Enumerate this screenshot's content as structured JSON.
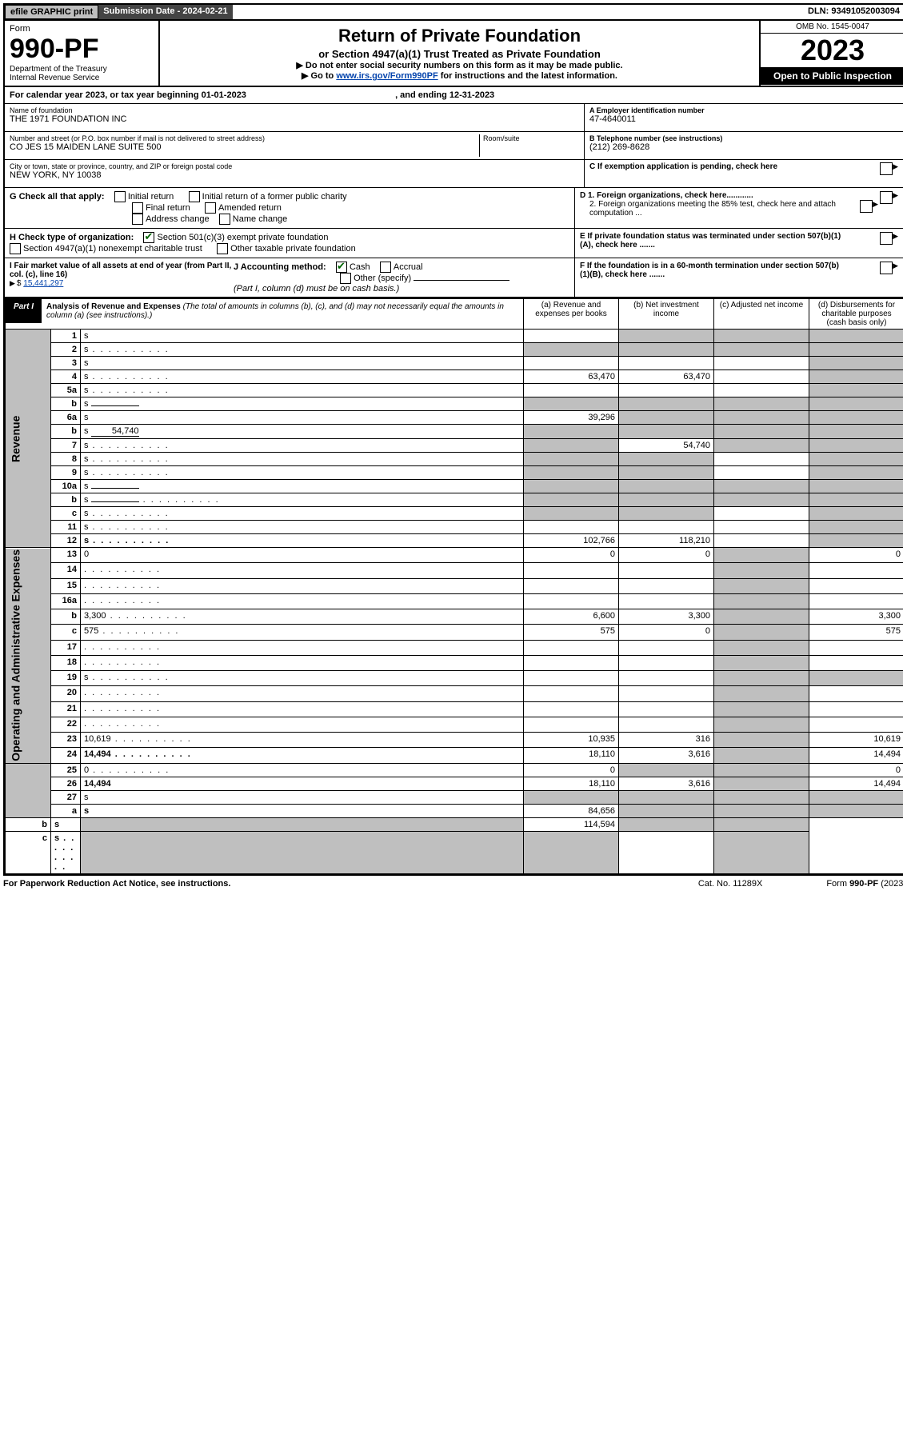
{
  "topbar": {
    "efile": "efile GRAPHIC print",
    "subdate_label": "Submission Date - ",
    "subdate": "2024-02-21",
    "dln_label": "DLN: ",
    "dln": "93491052003094"
  },
  "header": {
    "form_label": "Form",
    "form_no": "990-PF",
    "dept": "Department of the Treasury",
    "irs": "Internal Revenue Service",
    "title": "Return of Private Foundation",
    "subtitle": "or Section 4947(a)(1) Trust Treated as Private Foundation",
    "note1": "▶ Do not enter social security numbers on this form as it may be made public.",
    "note2_pre": "▶ Go to ",
    "note2_link": "www.irs.gov/Form990PF",
    "note2_post": " for instructions and the latest information.",
    "omb": "OMB No. 1545-0047",
    "year": "2023",
    "open": "Open to Public Inspection"
  },
  "cal": {
    "pre": "For calendar year 2023, or tax year beginning ",
    "begin": "01-01-2023",
    "mid": ", and ending ",
    "end": "12-31-2023"
  },
  "info": {
    "name_lbl": "Name of foundation",
    "name": "THE 1971 FOUNDATION INC",
    "addr_lbl": "Number and street (or P.O. box number if mail is not delivered to street address)",
    "addr": "CO JES 15 MAIDEN LANE SUITE 500",
    "room_lbl": "Room/suite",
    "city_lbl": "City or town, state or province, country, and ZIP or foreign postal code",
    "city": "NEW YORK, NY  10038",
    "a_lbl": "A Employer identification number",
    "a_val": "47-4640011",
    "b_lbl": "B Telephone number (see instructions)",
    "b_val": "(212) 269-8628",
    "c_lbl": "C If exemption application is pending, check here",
    "d1": "D 1. Foreign organizations, check here............",
    "d2": "2. Foreign organizations meeting the 85% test, check here and attach computation ...",
    "e": "E  If private foundation status was terminated under section 507(b)(1)(A), check here .......",
    "f": "F  If the foundation is in a 60-month termination under section 507(b)(1)(B), check here .......",
    "g_lbl": "G Check all that apply:",
    "g_opts": [
      "Initial return",
      "Initial return of a former public charity",
      "Final return",
      "Amended return",
      "Address change",
      "Name change"
    ],
    "h_lbl": "H Check type of organization:",
    "h_opts": [
      "Section 501(c)(3) exempt private foundation",
      "Section 4947(a)(1) nonexempt charitable trust",
      "Other taxable private foundation"
    ],
    "i_lbl": "I Fair market value of all assets at end of year (from Part II, col. (c), line 16)",
    "i_val": "15,441,297",
    "j_lbl": "J Accounting method:",
    "j_opts": [
      "Cash",
      "Accrual",
      "Other (specify)"
    ],
    "j_note": "(Part I, column (d) must be on cash basis.)"
  },
  "part1": {
    "tab": "Part I",
    "title": "Analysis of Revenue and Expenses",
    "title_note": "(The total of amounts in columns (b), (c), and (d) may not necessarily equal the amounts in column (a) (see instructions).)",
    "cols": {
      "a": "(a)  Revenue and expenses per books",
      "b": "(b)  Net investment income",
      "c": "(c)  Adjusted net income",
      "d": "(d)  Disbursements for charitable purposes (cash basis only)"
    }
  },
  "side_labels": {
    "revenue": "Revenue",
    "expenses": "Operating and Administrative Expenses"
  },
  "rows": [
    {
      "n": "1",
      "d": "s",
      "a": "",
      "b": "s",
      "c": "s"
    },
    {
      "n": "2",
      "d": "s",
      "a": "s",
      "b": "s",
      "c": "s",
      "dots": true
    },
    {
      "n": "3",
      "d": "s",
      "a": "",
      "b": "",
      "c": ""
    },
    {
      "n": "4",
      "d": "s",
      "a": "63,470",
      "b": "63,470",
      "c": "",
      "dots": true
    },
    {
      "n": "5a",
      "d": "s",
      "a": "",
      "b": "",
      "c": "",
      "dots": true
    },
    {
      "n": "b",
      "d": "s",
      "a": "s",
      "b": "s",
      "c": "s",
      "inline": ""
    },
    {
      "n": "6a",
      "d": "s",
      "a": "39,296",
      "b": "s",
      "c": "s"
    },
    {
      "n": "b",
      "d": "s",
      "a": "s",
      "b": "s",
      "c": "s",
      "inline": "54,740"
    },
    {
      "n": "7",
      "d": "s",
      "a": "s",
      "b": "54,740",
      "c": "s",
      "dots": true
    },
    {
      "n": "8",
      "d": "s",
      "a": "s",
      "b": "s",
      "c": "",
      "dots": true
    },
    {
      "n": "9",
      "d": "s",
      "a": "s",
      "b": "s",
      "c": "",
      "dots": true
    },
    {
      "n": "10a",
      "d": "s",
      "a": "s",
      "b": "s",
      "c": "s",
      "inline": ""
    },
    {
      "n": "b",
      "d": "s",
      "a": "s",
      "b": "s",
      "c": "s",
      "inline": "",
      "dots": true
    },
    {
      "n": "c",
      "d": "s",
      "a": "s",
      "b": "s",
      "c": "",
      "dots": true
    },
    {
      "n": "11",
      "d": "s",
      "a": "",
      "b": "",
      "c": "",
      "dots": true
    },
    {
      "n": "12",
      "d": "s",
      "a": "102,766",
      "b": "118,210",
      "c": "",
      "bold": true,
      "dots": true
    },
    {
      "n": "13",
      "d": "0",
      "a": "0",
      "b": "0",
      "c": "s"
    },
    {
      "n": "14",
      "d": "",
      "a": "",
      "b": "",
      "c": "s",
      "dots": true
    },
    {
      "n": "15",
      "d": "",
      "a": "",
      "b": "",
      "c": "s",
      "dots": true
    },
    {
      "n": "16a",
      "d": "",
      "a": "",
      "b": "",
      "c": "s",
      "dots": true
    },
    {
      "n": "b",
      "d": "3,300",
      "a": "6,600",
      "b": "3,300",
      "c": "s",
      "dots": true
    },
    {
      "n": "c",
      "d": "575",
      "a": "575",
      "b": "0",
      "c": "s",
      "dots": true
    },
    {
      "n": "17",
      "d": "",
      "a": "",
      "b": "",
      "c": "s",
      "dots": true
    },
    {
      "n": "18",
      "d": "",
      "a": "",
      "b": "",
      "c": "s",
      "dots": true
    },
    {
      "n": "19",
      "d": "s",
      "a": "",
      "b": "",
      "c": "s",
      "dots": true
    },
    {
      "n": "20",
      "d": "",
      "a": "",
      "b": "",
      "c": "s",
      "dots": true
    },
    {
      "n": "21",
      "d": "",
      "a": "",
      "b": "",
      "c": "s",
      "dots": true
    },
    {
      "n": "22",
      "d": "",
      "a": "",
      "b": "",
      "c": "s",
      "dots": true
    },
    {
      "n": "23",
      "d": "10,619",
      "a": "10,935",
      "b": "316",
      "c": "s",
      "dots": true
    },
    {
      "n": "24",
      "d": "14,494",
      "a": "18,110",
      "b": "3,616",
      "c": "s",
      "bold": true,
      "dots": true
    },
    {
      "n": "25",
      "d": "0",
      "a": "0",
      "b": "s",
      "c": "s",
      "dots": true
    },
    {
      "n": "26",
      "d": "14,494",
      "a": "18,110",
      "b": "3,616",
      "c": "s",
      "bold": true
    },
    {
      "n": "27",
      "d": "s",
      "a": "s",
      "b": "s",
      "c": "s"
    },
    {
      "n": "a",
      "d": "s",
      "a": "84,656",
      "b": "s",
      "c": "s",
      "bold": true
    },
    {
      "n": "b",
      "d": "s",
      "a": "s",
      "b": "114,594",
      "c": "s",
      "bold": true
    },
    {
      "n": "c",
      "d": "s",
      "a": "s",
      "b": "s",
      "c": "",
      "bold": true,
      "dots": true
    }
  ],
  "footer": {
    "left": "For Paperwork Reduction Act Notice, see instructions.",
    "mid": "Cat. No. 11289X",
    "right": "Form 990-PF (2023)"
  }
}
